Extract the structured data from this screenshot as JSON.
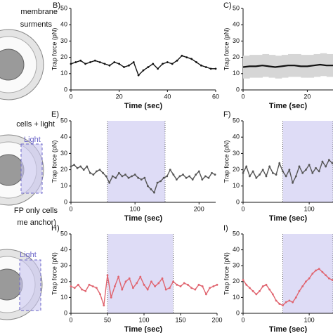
{
  "figure_text": {
    "rows": [
      {
        "lines": [
          "membrane",
          "surments"
        ]
      },
      {
        "lines": [
          "cells + light"
        ]
      },
      {
        "lines": [
          "FP only cells",
          "me anchor)"
        ]
      }
    ],
    "light_labels": [
      "Light",
      "Light"
    ]
  },
  "chart_data": [
    {
      "type": "line",
      "panel": "B)",
      "xlabel": "Time (sec)",
      "ylabel": "Trap force (pN)",
      "color": "#111111",
      "x": [
        0,
        2,
        4,
        6,
        8,
        10,
        12,
        14,
        16,
        18,
        20,
        22,
        24,
        26,
        28,
        30,
        32,
        34,
        36,
        38,
        40,
        42,
        44,
        46,
        48,
        50,
        52,
        54,
        56,
        58,
        60
      ],
      "series": [
        {
          "values": [
            16,
            17,
            18,
            16,
            17,
            18,
            17,
            16,
            15,
            17,
            16,
            14,
            15,
            17,
            9,
            12,
            14,
            16,
            13,
            16,
            17,
            16,
            18,
            21,
            20,
            19,
            17,
            15,
            14,
            13,
            13
          ]
        }
      ],
      "xlim": [
        0,
        60
      ],
      "xticks": [
        0,
        20,
        40,
        60
      ],
      "ylim": [
        0,
        50
      ],
      "yticks": [
        0,
        10,
        20,
        30,
        40,
        50
      ]
    },
    {
      "type": "band",
      "panel": "C)",
      "xlabel": "Time (sec)",
      "ylabel": "Trap force (pN)",
      "color": "#111111",
      "band_color": "#d6d6d6",
      "x": [
        0,
        2,
        4,
        6,
        8,
        10,
        12,
        14,
        16,
        18,
        20,
        22,
        24,
        26,
        28
      ],
      "series": [
        {
          "values": [
            14,
            14.5,
            14.5,
            15,
            14.5,
            14,
            14.5,
            15,
            15,
            14.5,
            14.5,
            15,
            15.5,
            15,
            15
          ],
          "errors": [
            7,
            7,
            7,
            7,
            7,
            7,
            7,
            7,
            7,
            7,
            7,
            7,
            7,
            7,
            7
          ]
        }
      ],
      "xlim": [
        0,
        28
      ],
      "xticks": [
        0,
        20
      ],
      "ylim": [
        0,
        50
      ],
      "yticks": [
        0,
        10,
        20,
        30,
        40,
        50
      ]
    },
    {
      "type": "line",
      "panel": "E)",
      "xlabel": "Time (sec)",
      "ylabel": "Trap force (pN)",
      "color": "#555555",
      "shade": [
        57,
        147
      ],
      "shade_color": "#dedcf6",
      "x": [
        0,
        5,
        10,
        15,
        20,
        25,
        30,
        35,
        40,
        45,
        50,
        55,
        60,
        65,
        70,
        75,
        80,
        85,
        90,
        95,
        100,
        105,
        110,
        115,
        120,
        125,
        130,
        135,
        140,
        145,
        150,
        155,
        160,
        165,
        170,
        175,
        180,
        185,
        190,
        195,
        200,
        205,
        210,
        215,
        220,
        225
      ],
      "series": [
        {
          "values": [
            22,
            23,
            21,
            22,
            20,
            22,
            18,
            17,
            19,
            20,
            18,
            16,
            12,
            16,
            15,
            18,
            16,
            17,
            15,
            16,
            17,
            15,
            14,
            15,
            10,
            8,
            6,
            12,
            13,
            15,
            16,
            20,
            17,
            14,
            16,
            17,
            15,
            16,
            14,
            17,
            19,
            14,
            16,
            15,
            18,
            17
          ]
        }
      ],
      "xlim": [
        0,
        226
      ],
      "xticks": [
        0,
        100,
        200
      ],
      "ylim": [
        0,
        50
      ],
      "yticks": [
        0,
        10,
        20,
        30,
        40,
        50
      ]
    },
    {
      "type": "line",
      "panel": "F)",
      "xlabel": "Time (sec)",
      "ylabel": "Trap force (pN)",
      "color": "#555555",
      "shade": [
        60,
        136
      ],
      "shade_color": "#dedcf6",
      "x": [
        0,
        5,
        10,
        15,
        20,
        25,
        30,
        35,
        40,
        45,
        50,
        55,
        60,
        65,
        70,
        75,
        80,
        85,
        90,
        95,
        100,
        105,
        110,
        115,
        120,
        125,
        130,
        135
      ],
      "series": [
        {
          "values": [
            18,
            22,
            16,
            19,
            15,
            17,
            20,
            16,
            22,
            18,
            17,
            24,
            19,
            16,
            20,
            12,
            16,
            22,
            18,
            20,
            23,
            18,
            21,
            19,
            25,
            22,
            26,
            24
          ]
        }
      ],
      "xlim": [
        0,
        136
      ],
      "xticks": [
        0,
        100
      ],
      "ylim": [
        0,
        50
      ],
      "yticks": [
        0,
        10,
        20,
        30,
        40,
        50
      ]
    },
    {
      "type": "line",
      "panel": "H)",
      "xlabel": "Time (sec)",
      "ylabel": "Trap force (pN)",
      "color": "#e0646f",
      "shade": [
        50,
        140
      ],
      "shade_color": "#dedcf6",
      "x": [
        0,
        5,
        10,
        15,
        20,
        25,
        30,
        35,
        40,
        45,
        50,
        55,
        60,
        65,
        70,
        75,
        80,
        85,
        90,
        95,
        100,
        105,
        110,
        115,
        120,
        125,
        130,
        135,
        140,
        145,
        150,
        155,
        160,
        165,
        170,
        175,
        180,
        185,
        190,
        195,
        200
      ],
      "series": [
        {
          "values": [
            17,
            16,
            18,
            15,
            14,
            18,
            17,
            16,
            12,
            5,
            24,
            10,
            17,
            23,
            15,
            20,
            22,
            16,
            19,
            23,
            18,
            15,
            20,
            17,
            19,
            22,
            15,
            16,
            20,
            18,
            17,
            19,
            18,
            16,
            15,
            18,
            17,
            12,
            16,
            17,
            18
          ]
        }
      ],
      "xlim": [
        0,
        200
      ],
      "xticks": [
        0,
        50,
        100,
        150,
        200
      ],
      "ylim": [
        0,
        50
      ],
      "yticks": [
        0,
        10,
        20,
        30,
        40,
        50
      ]
    },
    {
      "type": "line",
      "panel": "I)",
      "xlabel": "Time (sec)",
      "ylabel": "Trap force (pN)",
      "color": "#e0646f",
      "shade": [
        60,
        136
      ],
      "shade_color": "#dedcf6",
      "x": [
        0,
        5,
        10,
        15,
        20,
        25,
        30,
        35,
        40,
        45,
        50,
        55,
        60,
        65,
        70,
        75,
        80,
        85,
        90,
        95,
        100,
        105,
        110,
        115,
        120,
        125,
        130,
        135
      ],
      "series": [
        {
          "values": [
            21,
            18,
            16,
            14,
            12,
            14,
            17,
            18,
            15,
            12,
            8,
            6,
            5,
            7,
            8,
            7,
            10,
            14,
            17,
            20,
            22,
            25,
            27,
            28,
            26,
            24,
            22,
            21
          ]
        }
      ],
      "xlim": [
        0,
        136
      ],
      "xticks": [
        0,
        100
      ],
      "ylim": [
        0,
        50
      ],
      "yticks": [
        0,
        10,
        20,
        30,
        40,
        50
      ]
    }
  ]
}
